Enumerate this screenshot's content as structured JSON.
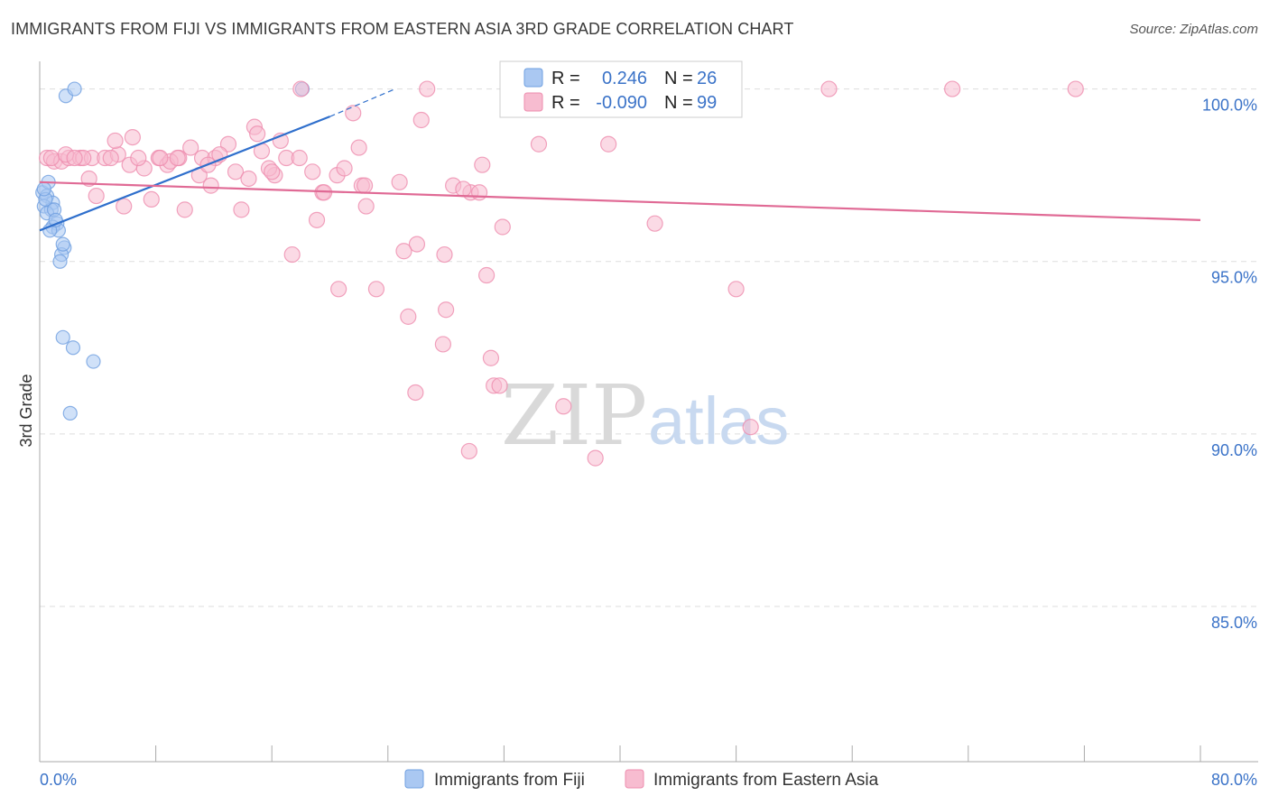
{
  "header": {
    "title": "IMMIGRANTS FROM FIJI VS IMMIGRANTS FROM EASTERN ASIA 3RD GRADE CORRELATION CHART",
    "source": "Source: ZipAtlas.com"
  },
  "watermark": {
    "zip": "ZIP",
    "atlas": "atlas"
  },
  "colors": {
    "fiji": "#6f9fe0",
    "fiji_fill": "#aac8f2",
    "fiji_line": "#2f6fcc",
    "asia": "#ee8cae",
    "asia_fill": "#f7bcd0",
    "asia_line": "#e06a95",
    "tick_label": "#3b73c8",
    "grid": "#dddddd"
  },
  "legend_box": {
    "rows": [
      {
        "r_label": "R =",
        "r_value": "0.246",
        "n_label": "N =",
        "n_value": "26"
      },
      {
        "r_label": "R =",
        "r_value": "-0.090",
        "n_label": "N =",
        "n_value": "99"
      }
    ]
  },
  "chart_data": {
    "type": "scatter",
    "title": "IMMIGRANTS FROM FIJI VS IMMIGRANTS FROM EASTERN ASIA 3RD GRADE CORRELATION CHART",
    "ylabel": "3rd Grade",
    "xlabel": "",
    "xlim": [
      0,
      80
    ],
    "ylim": [
      80.5,
      100.8
    ],
    "x_tick_labels": [
      "0.0%",
      "80.0%"
    ],
    "y_ticks": [
      85,
      90,
      95,
      100
    ],
    "y_tick_labels": [
      "85.0%",
      "90.0%",
      "95.0%",
      "100.0%"
    ],
    "grid": true,
    "legend_placement": "bottom-center",
    "series": [
      {
        "name": "Immigrants from Fiji",
        "color": "#6f9fe0",
        "R": 0.246,
        "N": 26,
        "trend": {
          "x": [
            0,
            20
          ],
          "y": [
            95.9,
            99.2
          ],
          "dash_to": [
            24.5,
            100
          ]
        },
        "points": [
          [
            0.2,
            97.0
          ],
          [
            0.5,
            96.9
          ],
          [
            0.9,
            96.7
          ],
          [
            0.3,
            96.6
          ],
          [
            0.8,
            96.5
          ],
          [
            0.5,
            96.4
          ],
          [
            1.2,
            96.1
          ],
          [
            0.9,
            96.0
          ],
          [
            1.3,
            95.9
          ],
          [
            1.7,
            95.4
          ],
          [
            1.5,
            95.2
          ],
          [
            1.4,
            95.0
          ],
          [
            0.6,
            97.3
          ],
          [
            1.8,
            99.8
          ],
          [
            2.4,
            100.0
          ],
          [
            18.1,
            100.0
          ],
          [
            1.6,
            92.8
          ],
          [
            2.3,
            92.5
          ],
          [
            3.7,
            92.1
          ],
          [
            2.1,
            90.6
          ],
          [
            0.4,
            96.8
          ],
          [
            1.0,
            96.5
          ],
          [
            0.7,
            95.9
          ],
          [
            1.6,
            95.5
          ],
          [
            0.3,
            97.1
          ],
          [
            1.1,
            96.2
          ]
        ]
      },
      {
        "name": "Immigrants from Eastern Asia",
        "color": "#ee8cae",
        "R": -0.09,
        "N": 99,
        "trend": {
          "x": [
            0,
            80
          ],
          "y": [
            97.3,
            96.2
          ]
        },
        "points": [
          [
            0.5,
            98.0
          ],
          [
            1.0,
            97.9
          ],
          [
            1.5,
            97.9
          ],
          [
            2.0,
            98.0
          ],
          [
            2.8,
            98.0
          ],
          [
            3.6,
            98.0
          ],
          [
            4.5,
            98.0
          ],
          [
            5.4,
            98.1
          ],
          [
            6.2,
            97.8
          ],
          [
            7.2,
            97.7
          ],
          [
            8.2,
            98.0
          ],
          [
            9.6,
            98.0
          ],
          [
            10.4,
            98.3
          ],
          [
            11.2,
            98.0
          ],
          [
            12.1,
            98.0
          ],
          [
            13.5,
            97.6
          ],
          [
            14.4,
            97.4
          ],
          [
            15.3,
            98.2
          ],
          [
            16.2,
            97.5
          ],
          [
            17.0,
            98.0
          ],
          [
            5.2,
            98.5
          ],
          [
            6.4,
            98.6
          ],
          [
            8.8,
            97.8
          ],
          [
            11.8,
            97.2
          ],
          [
            13.0,
            98.4
          ],
          [
            14.8,
            98.9
          ],
          [
            15.0,
            98.7
          ],
          [
            16.6,
            98.5
          ],
          [
            12.4,
            98.1
          ],
          [
            7.7,
            96.8
          ],
          [
            3.4,
            97.4
          ],
          [
            5.8,
            96.6
          ],
          [
            10.0,
            96.5
          ],
          [
            13.9,
            96.5
          ],
          [
            4.9,
            98.0
          ],
          [
            9.0,
            97.9
          ],
          [
            11.0,
            97.5
          ],
          [
            18.8,
            97.6
          ],
          [
            19.5,
            97.0
          ],
          [
            20.5,
            97.5
          ],
          [
            21.0,
            97.7
          ],
          [
            22.2,
            97.2
          ],
          [
            22.5,
            96.6
          ],
          [
            24.8,
            97.3
          ],
          [
            26.0,
            95.5
          ],
          [
            25.1,
            95.3
          ],
          [
            27.9,
            95.2
          ],
          [
            28.0,
            93.6
          ],
          [
            29.7,
            97.0
          ],
          [
            30.3,
            97.0
          ],
          [
            30.8,
            94.6
          ],
          [
            31.9,
            96.0
          ],
          [
            28.5,
            97.2
          ],
          [
            29.2,
            97.1
          ],
          [
            34.4,
            98.4
          ],
          [
            22.0,
            98.3
          ],
          [
            21.6,
            99.3
          ],
          [
            26.3,
            99.1
          ],
          [
            26.7,
            100.0
          ],
          [
            18.0,
            100.0
          ],
          [
            8.3,
            98.0
          ],
          [
            0.8,
            98.0
          ],
          [
            1.8,
            98.1
          ],
          [
            3.0,
            98.0
          ],
          [
            6.8,
            98.0
          ],
          [
            2.4,
            98.0
          ],
          [
            3.9,
            96.9
          ],
          [
            9.5,
            98.0
          ],
          [
            11.6,
            97.8
          ],
          [
            17.4,
            95.2
          ],
          [
            19.1,
            96.2
          ],
          [
            20.6,
            94.2
          ],
          [
            23.2,
            94.2
          ],
          [
            25.4,
            93.4
          ],
          [
            27.8,
            92.6
          ],
          [
            31.1,
            92.2
          ],
          [
            25.9,
            91.2
          ],
          [
            31.3,
            91.4
          ],
          [
            31.7,
            91.4
          ],
          [
            29.6,
            89.5
          ],
          [
            36.1,
            90.8
          ],
          [
            38.3,
            89.3
          ],
          [
            37.9,
            100.0
          ],
          [
            36.1,
            100.0
          ],
          [
            42.8,
            100.0
          ],
          [
            47.7,
            100.0
          ],
          [
            54.4,
            100.0
          ],
          [
            62.9,
            100.0
          ],
          [
            71.4,
            100.0
          ],
          [
            39.2,
            98.4
          ],
          [
            42.4,
            96.1
          ],
          [
            48.0,
            94.2
          ],
          [
            49.0,
            90.2
          ],
          [
            17.9,
            98.0
          ],
          [
            15.8,
            97.7
          ],
          [
            16.0,
            97.6
          ],
          [
            30.5,
            97.8
          ],
          [
            19.6,
            97.0
          ],
          [
            22.4,
            97.2
          ]
        ]
      }
    ]
  },
  "bottom_legend": [
    {
      "label": "Immigrants from Fiji"
    },
    {
      "label": "Immigrants from Eastern Asia"
    }
  ]
}
